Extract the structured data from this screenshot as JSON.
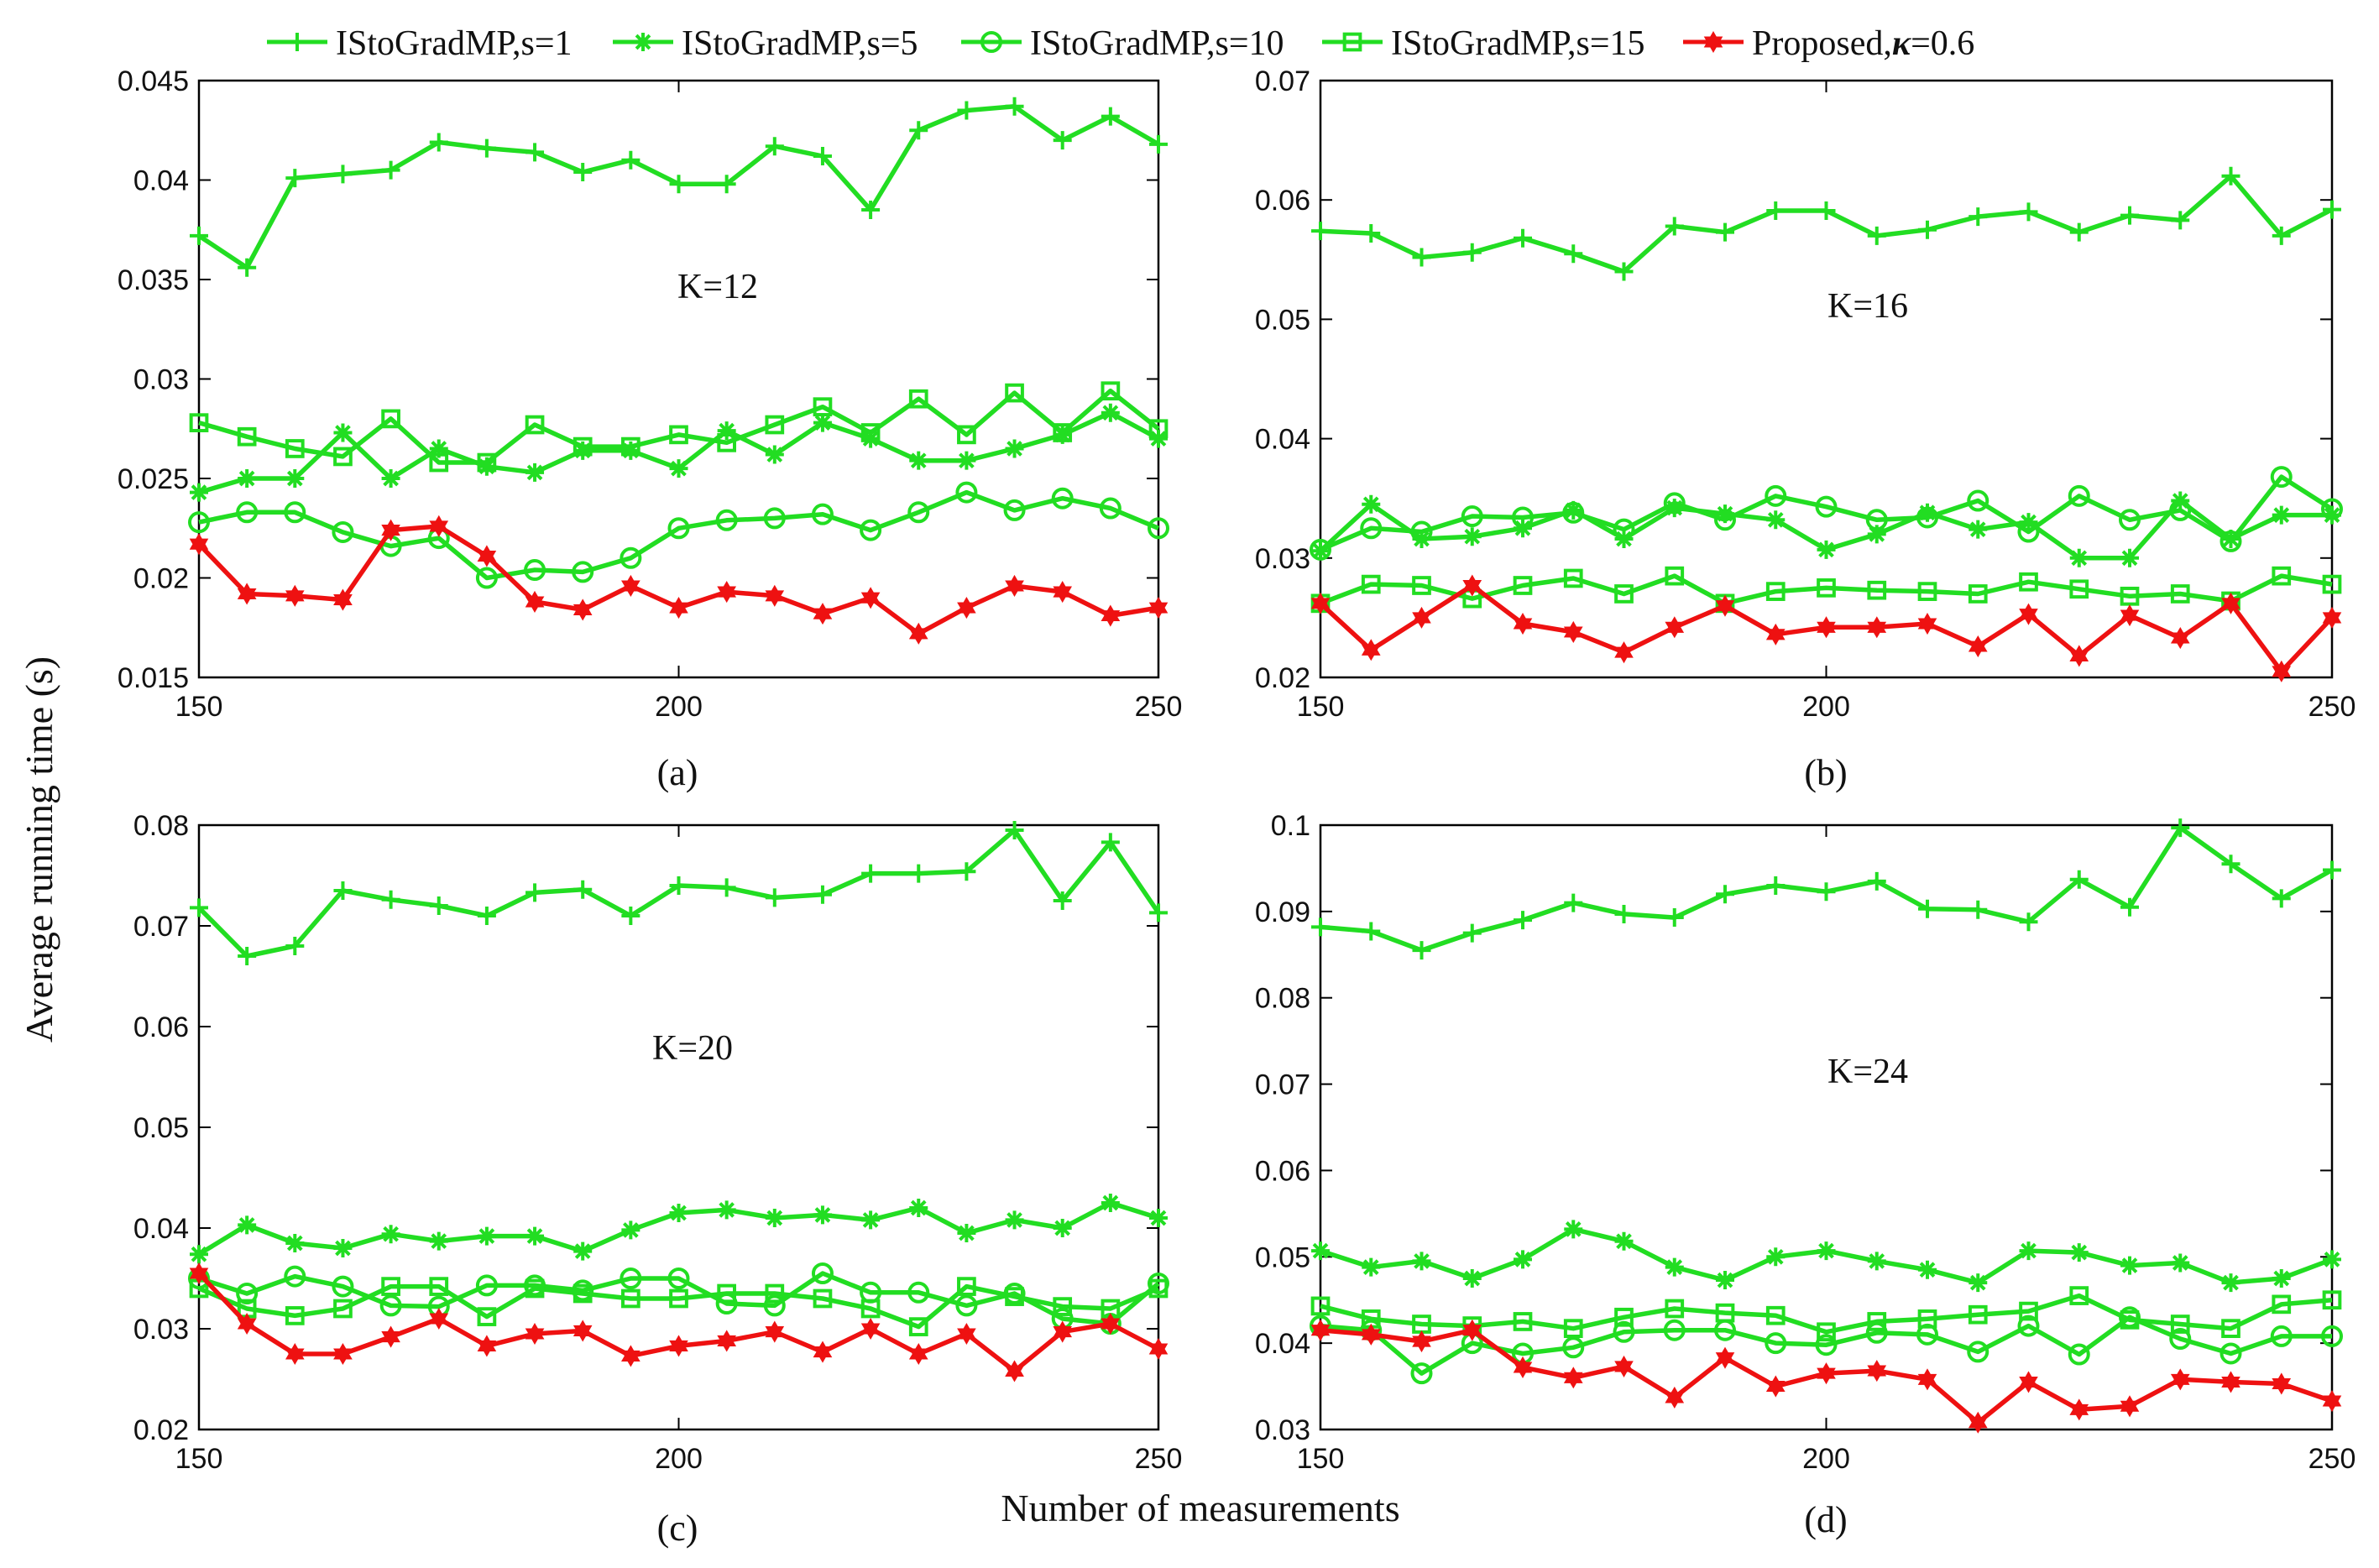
{
  "legend": {
    "entries": [
      {
        "label": "IStoGradMP,s=1",
        "color": "#22dd22",
        "marker": "plus"
      },
      {
        "label": "IStoGradMP,s=5",
        "color": "#22dd22",
        "marker": "asterisk"
      },
      {
        "label": "IStoGradMP,s=10",
        "color": "#22dd22",
        "marker": "circle"
      },
      {
        "label": "IStoGradMP,s=15",
        "color": "#22dd22",
        "marker": "square"
      },
      {
        "label": "Proposed,",
        "label_kappa": "κ",
        "label_tail": "=0.6",
        "color": "#ee1111",
        "marker": "hexagram"
      }
    ]
  },
  "ylabel": "Average running time (s)",
  "xlabel": "Number of measurements",
  "chart_data": [
    {
      "type": "line",
      "panel": "(a)",
      "annotation": "K=12",
      "x": [
        150,
        155,
        160,
        165,
        170,
        175,
        180,
        185,
        190,
        195,
        200,
        205,
        210,
        215,
        220,
        225,
        230,
        235,
        240,
        245,
        250
      ],
      "xlim": [
        150,
        250
      ],
      "ylim": [
        0.015,
        0.045
      ],
      "xticks": [
        "150",
        "200",
        "250"
      ],
      "yticks": [
        "0.015",
        "0.02",
        "0.025",
        "0.03",
        "0.035",
        "0.04",
        "0.045"
      ],
      "series": [
        {
          "name": "IStoGradMP,s=1",
          "values": [
            0.0372,
            0.0356,
            0.0401,
            0.0403,
            0.0405,
            0.0419,
            0.0416,
            0.0414,
            0.0404,
            0.041,
            0.0398,
            0.0398,
            0.0417,
            0.0412,
            0.0385,
            0.0425,
            0.0435,
            0.0437,
            0.042,
            0.0432,
            0.0418
          ]
        },
        {
          "name": "IStoGradMP,s=5",
          "values": [
            0.0243,
            0.025,
            0.025,
            0.0273,
            0.025,
            0.0265,
            0.0256,
            0.0253,
            0.0264,
            0.0264,
            0.0255,
            0.0274,
            0.0262,
            0.0278,
            0.027,
            0.0259,
            0.0259,
            0.0265,
            0.0272,
            0.0283,
            0.027
          ]
        },
        {
          "name": "IStoGradMP,s=10",
          "values": [
            0.0228,
            0.0233,
            0.0233,
            0.0223,
            0.0216,
            0.022,
            0.02,
            0.0204,
            0.0203,
            0.021,
            0.0225,
            0.0229,
            0.023,
            0.0232,
            0.0224,
            0.0233,
            0.0243,
            0.0234,
            0.024,
            0.0235,
            0.0225
          ]
        },
        {
          "name": "IStoGradMP,s=15",
          "values": [
            0.0278,
            0.0271,
            0.0265,
            0.0261,
            0.028,
            0.0258,
            0.0258,
            0.0277,
            0.0266,
            0.0266,
            0.0272,
            0.0268,
            0.0277,
            0.0286,
            0.0273,
            0.029,
            0.0272,
            0.0293,
            0.0273,
            0.0294,
            0.0275
          ]
        },
        {
          "name": "Proposed,κ=0.6",
          "values": [
            0.0217,
            0.0192,
            0.0191,
            0.0189,
            0.0224,
            0.0226,
            0.0211,
            0.0188,
            0.0184,
            0.0196,
            0.0185,
            0.0193,
            0.0191,
            0.0182,
            0.019,
            0.0172,
            0.0185,
            0.0196,
            0.0193,
            0.0181,
            0.0185
          ]
        }
      ]
    },
    {
      "type": "line",
      "panel": "(b)",
      "annotation": "K=16",
      "x": [
        150,
        155,
        160,
        165,
        170,
        175,
        180,
        185,
        190,
        195,
        200,
        205,
        210,
        215,
        220,
        225,
        230,
        235,
        240,
        245,
        250
      ],
      "xlim": [
        150,
        250
      ],
      "ylim": [
        0.02,
        0.07
      ],
      "xticks": [
        "150",
        "200",
        "250"
      ],
      "yticks": [
        "0.02",
        "0.03",
        "0.04",
        "0.05",
        "0.06",
        "0.07"
      ],
      "series": [
        {
          "name": "IStoGradMP,s=1",
          "values": [
            0.0574,
            0.0572,
            0.0552,
            0.0556,
            0.0568,
            0.0555,
            0.054,
            0.0578,
            0.0573,
            0.0591,
            0.0591,
            0.057,
            0.0575,
            0.0586,
            0.059,
            0.0573,
            0.0587,
            0.0583,
            0.062,
            0.057,
            0.0592
          ]
        },
        {
          "name": "IStoGradMP,s=5",
          "values": [
            0.0306,
            0.0345,
            0.0316,
            0.0318,
            0.0325,
            0.034,
            0.0316,
            0.0342,
            0.0337,
            0.0332,
            0.0307,
            0.032,
            0.0338,
            0.0324,
            0.033,
            0.03,
            0.03,
            0.0348,
            0.0316,
            0.0336,
            0.0336
          ]
        },
        {
          "name": "IStoGradMP,s=10",
          "values": [
            0.0307,
            0.0325,
            0.0322,
            0.0335,
            0.0334,
            0.0338,
            0.0324,
            0.0346,
            0.0332,
            0.0352,
            0.0343,
            0.0332,
            0.0334,
            0.0348,
            0.0322,
            0.0352,
            0.0332,
            0.034,
            0.0314,
            0.0368,
            0.0341
          ]
        },
        {
          "name": "IStoGradMP,s=15",
          "values": [
            0.0262,
            0.0278,
            0.0277,
            0.0266,
            0.0277,
            0.0283,
            0.027,
            0.0285,
            0.0262,
            0.0272,
            0.0275,
            0.0273,
            0.0272,
            0.027,
            0.028,
            0.0274,
            0.0268,
            0.027,
            0.0264,
            0.0285,
            0.0278
          ]
        },
        {
          "name": "Proposed,κ=0.6",
          "values": [
            0.0262,
            0.0223,
            0.025,
            0.0277,
            0.0245,
            0.0238,
            0.0221,
            0.0242,
            0.026,
            0.0236,
            0.0242,
            0.0242,
            0.0245,
            0.0226,
            0.0253,
            0.0218,
            0.0252,
            0.0233,
            0.0262,
            0.0205,
            0.025
          ]
        }
      ]
    },
    {
      "type": "line",
      "panel": "(c)",
      "annotation": "K=20",
      "x": [
        150,
        155,
        160,
        165,
        170,
        175,
        180,
        185,
        190,
        195,
        200,
        205,
        210,
        215,
        220,
        225,
        230,
        235,
        240,
        245,
        250
      ],
      "xlim": [
        150,
        250
      ],
      "ylim": [
        0.02,
        0.08
      ],
      "xticks": [
        "150",
        "200",
        "250"
      ],
      "yticks": [
        "0.02",
        "0.03",
        "0.04",
        "0.05",
        "0.06",
        "0.07",
        "0.08"
      ],
      "series": [
        {
          "name": "IStoGradMP,s=1",
          "values": [
            0.0718,
            0.067,
            0.068,
            0.0735,
            0.0726,
            0.072,
            0.071,
            0.0733,
            0.0736,
            0.071,
            0.074,
            0.0738,
            0.0728,
            0.0731,
            0.0752,
            0.0752,
            0.0754,
            0.0795,
            0.0725,
            0.0783,
            0.0713
          ]
        },
        {
          "name": "IStoGradMP,s=5",
          "values": [
            0.0374,
            0.0403,
            0.0385,
            0.038,
            0.0394,
            0.0387,
            0.0392,
            0.0392,
            0.0377,
            0.0398,
            0.0415,
            0.0418,
            0.041,
            0.0413,
            0.0408,
            0.042,
            0.0395,
            0.0408,
            0.04,
            0.0425,
            0.041
          ]
        },
        {
          "name": "IStoGradMP,s=10",
          "values": [
            0.035,
            0.0335,
            0.0352,
            0.0342,
            0.0323,
            0.0322,
            0.0343,
            0.0343,
            0.0338,
            0.035,
            0.035,
            0.0325,
            0.0323,
            0.0355,
            0.0336,
            0.0336,
            0.0323,
            0.0335,
            0.031,
            0.0305,
            0.0345
          ]
        },
        {
          "name": "IStoGradMP,s=15",
          "values": [
            0.034,
            0.032,
            0.0313,
            0.032,
            0.0342,
            0.0342,
            0.0312,
            0.034,
            0.0335,
            0.033,
            0.033,
            0.0335,
            0.0335,
            0.033,
            0.032,
            0.0302,
            0.0342,
            0.0332,
            0.0322,
            0.032,
            0.034
          ]
        },
        {
          "name": "Proposed,κ=0.6",
          "values": [
            0.0355,
            0.0305,
            0.0275,
            0.0275,
            0.0292,
            0.031,
            0.0283,
            0.0295,
            0.0298,
            0.0273,
            0.0283,
            0.0288,
            0.0297,
            0.0277,
            0.03,
            0.0275,
            0.0295,
            0.0258,
            0.0297,
            0.0305,
            0.028
          ]
        }
      ]
    },
    {
      "type": "line",
      "panel": "(d)",
      "annotation": "K=24",
      "x": [
        150,
        155,
        160,
        165,
        170,
        175,
        180,
        185,
        190,
        195,
        200,
        205,
        210,
        215,
        220,
        225,
        230,
        235,
        240,
        245,
        250
      ],
      "xlim": [
        150,
        250
      ],
      "ylim": [
        0.03,
        0.1
      ],
      "xticks": [
        "150",
        "200",
        "250"
      ],
      "yticks": [
        "0.03",
        "0.04",
        "0.05",
        "0.06",
        "0.07",
        "0.08",
        "0.09",
        "0.1"
      ],
      "series": [
        {
          "name": "IStoGradMP,s=1",
          "values": [
            0.0882,
            0.0877,
            0.0855,
            0.0875,
            0.089,
            0.091,
            0.0897,
            0.0893,
            0.092,
            0.093,
            0.0923,
            0.0935,
            0.0903,
            0.0902,
            0.0888,
            0.0937,
            0.0905,
            0.0997,
            0.0955,
            0.0915,
            0.0948
          ]
        },
        {
          "name": "IStoGradMP,s=5",
          "values": [
            0.0507,
            0.0488,
            0.0495,
            0.0475,
            0.0497,
            0.0532,
            0.0518,
            0.0488,
            0.0473,
            0.05,
            0.0507,
            0.0495,
            0.0485,
            0.047,
            0.0507,
            0.0505,
            0.049,
            0.0493,
            0.047,
            0.0475,
            0.0497
          ]
        },
        {
          "name": "IStoGradMP,s=10",
          "values": [
            0.042,
            0.0415,
            0.0365,
            0.04,
            0.0388,
            0.0395,
            0.0413,
            0.0415,
            0.0415,
            0.04,
            0.0398,
            0.0412,
            0.041,
            0.039,
            0.042,
            0.0387,
            0.043,
            0.0405,
            0.0388,
            0.0408,
            0.0408
          ]
        },
        {
          "name": "IStoGradMP,s=15",
          "values": [
            0.0443,
            0.0428,
            0.0422,
            0.042,
            0.0425,
            0.0417,
            0.043,
            0.044,
            0.0435,
            0.0432,
            0.0413,
            0.0425,
            0.0428,
            0.0433,
            0.0437,
            0.0455,
            0.0427,
            0.0422,
            0.0417,
            0.0445,
            0.045
          ]
        },
        {
          "name": "Proposed,κ=0.6",
          "values": [
            0.0415,
            0.041,
            0.0402,
            0.0415,
            0.0372,
            0.036,
            0.0373,
            0.0337,
            0.0383,
            0.035,
            0.0365,
            0.0368,
            0.0358,
            0.0308,
            0.0355,
            0.0323,
            0.0327,
            0.0358,
            0.0355,
            0.0353,
            0.0333
          ]
        }
      ]
    }
  ]
}
